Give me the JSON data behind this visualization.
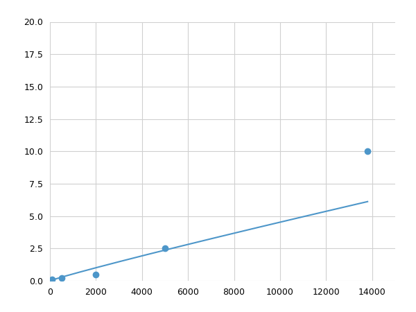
{
  "x": [
    100,
    500,
    2000,
    5000,
    13800
  ],
  "y": [
    0.1,
    0.2,
    0.5,
    2.5,
    10.0
  ],
  "line_color": "#4d96c9",
  "marker_color": "#4d96c9",
  "marker_size": 6,
  "xlim": [
    0,
    15000
  ],
  "ylim": [
    0,
    20.0
  ],
  "xticks": [
    0,
    2000,
    4000,
    6000,
    8000,
    10000,
    12000,
    14000
  ],
  "yticks": [
    0.0,
    2.5,
    5.0,
    7.5,
    10.0,
    12.5,
    15.0,
    17.5,
    20.0
  ],
  "grid_color": "#d0d0d0",
  "background_color": "#ffffff",
  "linewidth": 1.5
}
